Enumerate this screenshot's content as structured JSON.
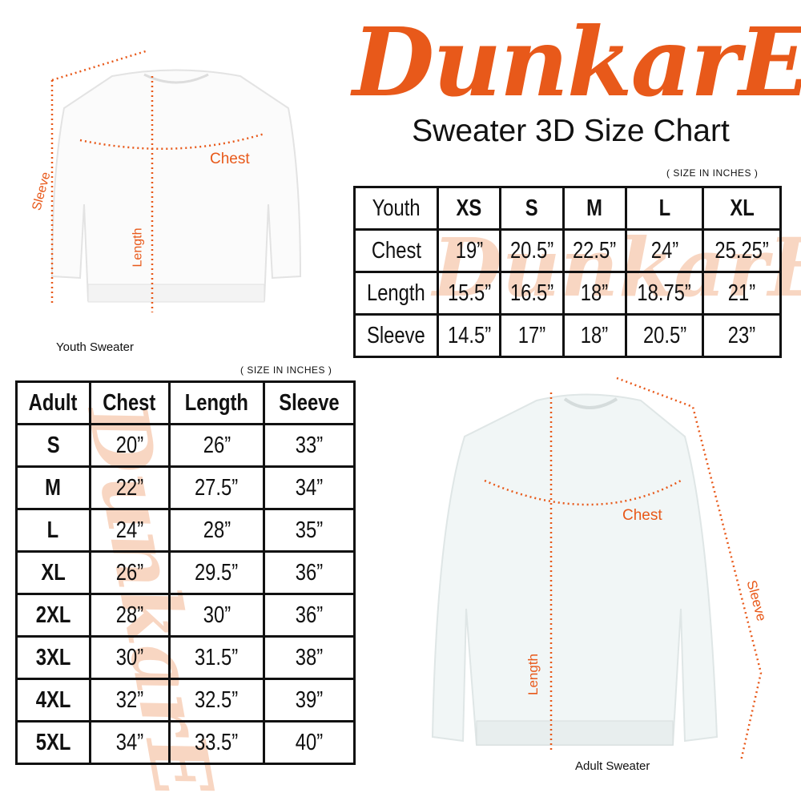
{
  "brand": {
    "logo_text": "DunkarE",
    "accent_color": "#e8591a"
  },
  "title": "Sweater 3D Size Chart",
  "youth": {
    "note": "( SIZE IN INCHES )",
    "caption": "Youth Sweater",
    "diagram_labels": {
      "chest": "Chest",
      "length": "Length",
      "sleeve": "Sleeve"
    },
    "headers": [
      "Youth",
      "XS",
      "S",
      "M",
      "L",
      "XL"
    ],
    "rows": [
      [
        "Chest",
        "19”",
        "20.5”",
        "22.5”",
        "24”",
        "25.25”"
      ],
      [
        "Length",
        "15.5”",
        "16.5”",
        "18”",
        "18.75”",
        "21”"
      ],
      [
        "Sleeve",
        "14.5”",
        "17”",
        "18”",
        "20.5”",
        "23”"
      ]
    ]
  },
  "adult": {
    "note": "( SIZE IN INCHES )",
    "caption": "Adult Sweater",
    "diagram_labels": {
      "chest": "Chest",
      "length": "Length",
      "sleeve": "Sleeve"
    },
    "headers": [
      "Adult",
      "Chest",
      "Length",
      "Sleeve"
    ],
    "rows": [
      [
        "S",
        "20”",
        "26”",
        "33”"
      ],
      [
        "M",
        "22”",
        "27.5”",
        "34”"
      ],
      [
        "L",
        "24”",
        "28”",
        "35”"
      ],
      [
        "XL",
        "26”",
        "29.5”",
        "36”"
      ],
      [
        "2XL",
        "28”",
        "30”",
        "36”"
      ],
      [
        "3XL",
        "30”",
        "31.5”",
        "38”"
      ],
      [
        "4XL",
        "32”",
        "32.5”",
        "39”"
      ],
      [
        "5XL",
        "34”",
        "33.5”",
        "40”"
      ]
    ]
  }
}
